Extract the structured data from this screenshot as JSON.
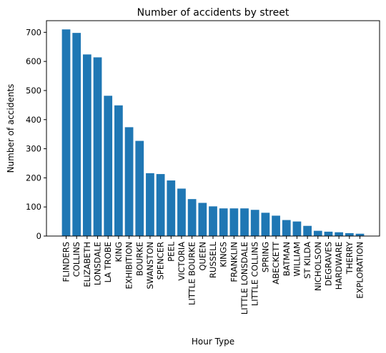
{
  "chart_data": {
    "type": "bar",
    "title": "Number of accidents by street",
    "xlabel": "Hour Type",
    "ylabel": "Number of accidents",
    "ylim": [
      0,
      740
    ],
    "yticks": [
      0,
      100,
      200,
      300,
      400,
      500,
      600,
      700
    ],
    "grid": false,
    "bar_color": "#1f77b4",
    "categories": [
      "FLINDERS",
      "COLLINS",
      "ELIZABETH",
      "LONSDALE",
      "LA TROBE",
      "KING",
      "EXHIBITION",
      "BOURKE",
      "SWANSTON",
      "SPENCER",
      "PEEL",
      "VICTORIA",
      "LITTLE BOURKE",
      "QUEEN",
      "RUSSELL",
      "KINGS",
      "FRANKLIN",
      "LITTLE LONSDALE",
      "LITTLE COLLINS",
      "SPRING",
      "ABECKETT",
      "BATMAN",
      "WILLIAM",
      "ST KILDA",
      "NICHOLSON",
      "DEGRAVES",
      "HARDWARE",
      "THERRY",
      "EXPLORATION"
    ],
    "values": [
      710,
      698,
      624,
      614,
      482,
      449,
      374,
      327,
      216,
      213,
      191,
      163,
      127,
      114,
      102,
      95,
      95,
      95,
      90,
      80,
      70,
      55,
      50,
      35,
      18,
      15,
      13,
      10,
      8
    ]
  }
}
